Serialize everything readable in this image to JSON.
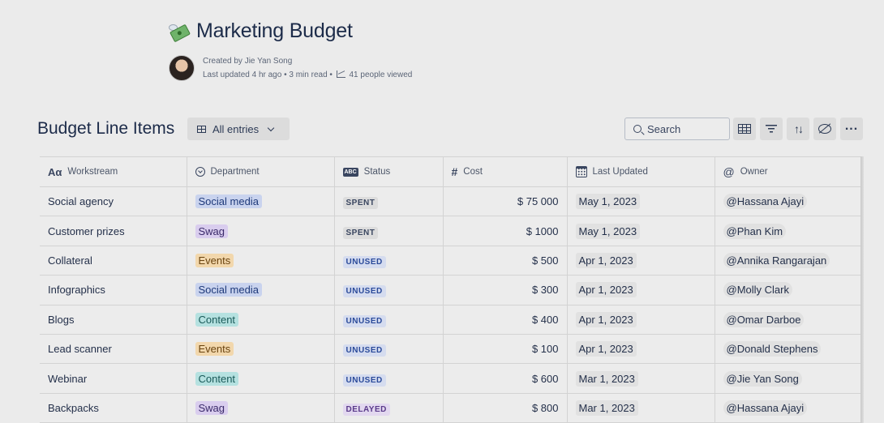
{
  "page": {
    "title": "Marketing Budget",
    "title_icon": "money-with-wings-icon",
    "created_by": "Created by Jie Yan Song",
    "last_updated": "Last updated 4 hr ago",
    "read_time": "3 min read",
    "views": "41 people viewed",
    "separator": "•"
  },
  "toolbar": {
    "section_title": "Budget Line Items",
    "view_label": "All entries",
    "search_placeholder": "Search"
  },
  "columns": [
    {
      "label": "Workstream",
      "icon": "text-icon"
    },
    {
      "label": "Department",
      "icon": "select-icon"
    },
    {
      "label": "Status",
      "icon": "status-icon"
    },
    {
      "label": "Cost",
      "icon": "number-icon"
    },
    {
      "label": "Last Updated",
      "icon": "calendar-icon"
    },
    {
      "label": "Owner",
      "icon": "mention-icon"
    }
  ],
  "colors": {
    "dept": {
      "Social media": {
        "bg": "#c9d3ee",
        "fg": "#1f3a7a"
      },
      "Swag": {
        "bg": "#d9cdee",
        "fg": "#3a2a6a"
      },
      "Events": {
        "bg": "#f2d7ac",
        "fg": "#6a4410"
      },
      "Content": {
        "bg": "#b5e1e0",
        "fg": "#1a5a59"
      }
    },
    "status": {
      "SPENT": {
        "bg": "#dcdcdc",
        "fg": "#3a4660"
      },
      "UNUSED": {
        "bg": "#d5dcef",
        "fg": "#2a4a9a"
      },
      "DELAYED": {
        "bg": "#e2d8ef",
        "fg": "#5a3a8a"
      }
    }
  },
  "rows": [
    {
      "workstream": "Social agency",
      "department": "Social media",
      "status": "SPENT",
      "cost": "$ 75 000",
      "updated": "May 1, 2023",
      "owner": "@Hassana Ajayi"
    },
    {
      "workstream": "Customer prizes",
      "department": "Swag",
      "status": "SPENT",
      "cost": "$ 1000",
      "updated": "May 1, 2023",
      "owner": "@Phan Kim"
    },
    {
      "workstream": "Collateral",
      "department": "Events",
      "status": "UNUSED",
      "cost": "$ 500",
      "updated": "Apr 1, 2023",
      "owner": "@Annika Rangarajan"
    },
    {
      "workstream": "Infographics",
      "department": "Social media",
      "status": "UNUSED",
      "cost": "$ 300",
      "updated": "Apr 1, 2023",
      "owner": "@Molly Clark"
    },
    {
      "workstream": "Blogs",
      "department": "Content",
      "status": "UNUSED",
      "cost": "$ 400",
      "updated": "Apr 1, 2023",
      "owner": "@Omar Darboe"
    },
    {
      "workstream": "Lead scanner",
      "department": "Events",
      "status": "UNUSED",
      "cost": "$ 100",
      "updated": "Apr 1, 2023",
      "owner": "@Donald Stephens"
    },
    {
      "workstream": "Webinar",
      "department": "Content",
      "status": "UNUSED",
      "cost": "$ 600",
      "updated": "Mar 1, 2023",
      "owner": "@Jie Yan Song"
    },
    {
      "workstream": "Backpacks",
      "department": "Swag",
      "status": "DELAYED",
      "cost": "$ 800",
      "updated": "Mar 1, 2023",
      "owner": "@Hassana Ajayi"
    }
  ]
}
